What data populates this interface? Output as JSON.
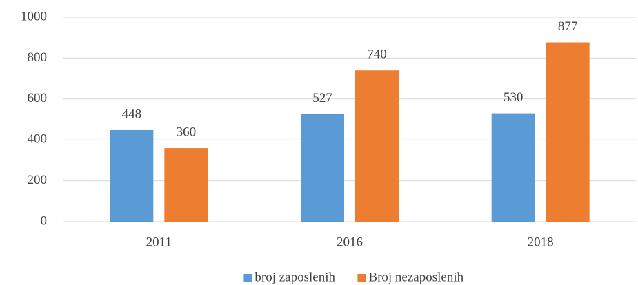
{
  "chart_data": {
    "type": "bar",
    "categories": [
      "2011",
      "2016",
      "2018"
    ],
    "series": [
      {
        "name": "broj zaposlenih",
        "color": "#5b9bd5",
        "values": [
          448,
          527,
          530
        ]
      },
      {
        "name": "Broj nezaposlenih",
        "color": "#ed7d31",
        "values": [
          360,
          740,
          877
        ]
      }
    ],
    "ylim": [
      0,
      1000
    ],
    "yticks": [
      0,
      200,
      400,
      600,
      800,
      1000
    ],
    "grid": true,
    "legend": "bottom"
  }
}
